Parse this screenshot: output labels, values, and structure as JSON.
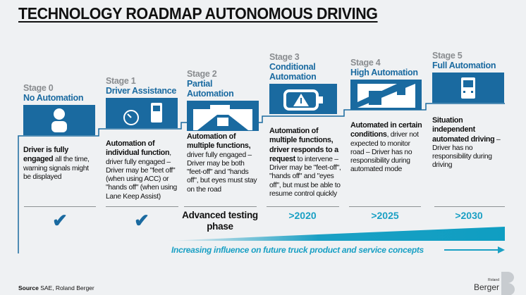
{
  "title": "TECHNOLOGY ROADMAP AUTONOMOUS DRIVING",
  "colors": {
    "blue": "#1a6aa0",
    "cyan": "#1aa0c4",
    "background": "#eff1f3"
  },
  "stages": [
    {
      "label": "Stage 0",
      "name": "No Automation",
      "icon": "person-icon",
      "desc_bold": "Driver is fully engaged",
      "desc": " all the time, warning signals might be displayed",
      "status": "✔"
    },
    {
      "label": "Stage 1",
      "name": "Driver Assistance",
      "icon": "speedometer-truck-icon",
      "desc_bold": "Automation of individual function",
      "desc": ", driver fully engaged – Driver may be \"feet off\" (when using ACC) or \"hands off\" (when using Lane Keep Assist)",
      "status": "✔"
    },
    {
      "label": "Stage 2",
      "name": "Partial Automation",
      "icon": "road-view-icon",
      "desc_bold": "Automation of multiple functions,",
      "desc": " driver fully engaged – Driver may be both \"feet-off\" and \"hands off\", but eyes must stay on the road",
      "status": "Advanced testing phase"
    },
    {
      "label": "Stage 3",
      "name": "Conditional Automation",
      "icon": "warning-display-icon",
      "desc_bold": "Automation of multiple functions, driver responds to a request",
      "desc": " to intervene – Driver may be \"feet-off\", \"hands off\" and \"eyes off\", but must be able to resume control quickly",
      "status": ">2020"
    },
    {
      "label": "Stage 4",
      "name": "High Automation",
      "icon": "trucks-road-icon",
      "desc_bold": "Automated in certain conditions",
      "desc": ", driver not expected to monitor road – Driver has no responsibility during automated mode",
      "status": ">2025"
    },
    {
      "label": "Stage 5",
      "name": "Full  Automation",
      "icon": "truck-icon",
      "desc_bold": "Situation independent automated driving",
      "desc": " – Driver has no responsibility during driving",
      "status": ">2030"
    }
  ],
  "influence": "Increasing influence on future truck product and service concepts",
  "source_label": "Source",
  "source": " SAE, Roland Berger",
  "logo": {
    "line1": "Roland",
    "line2": "Berger"
  }
}
